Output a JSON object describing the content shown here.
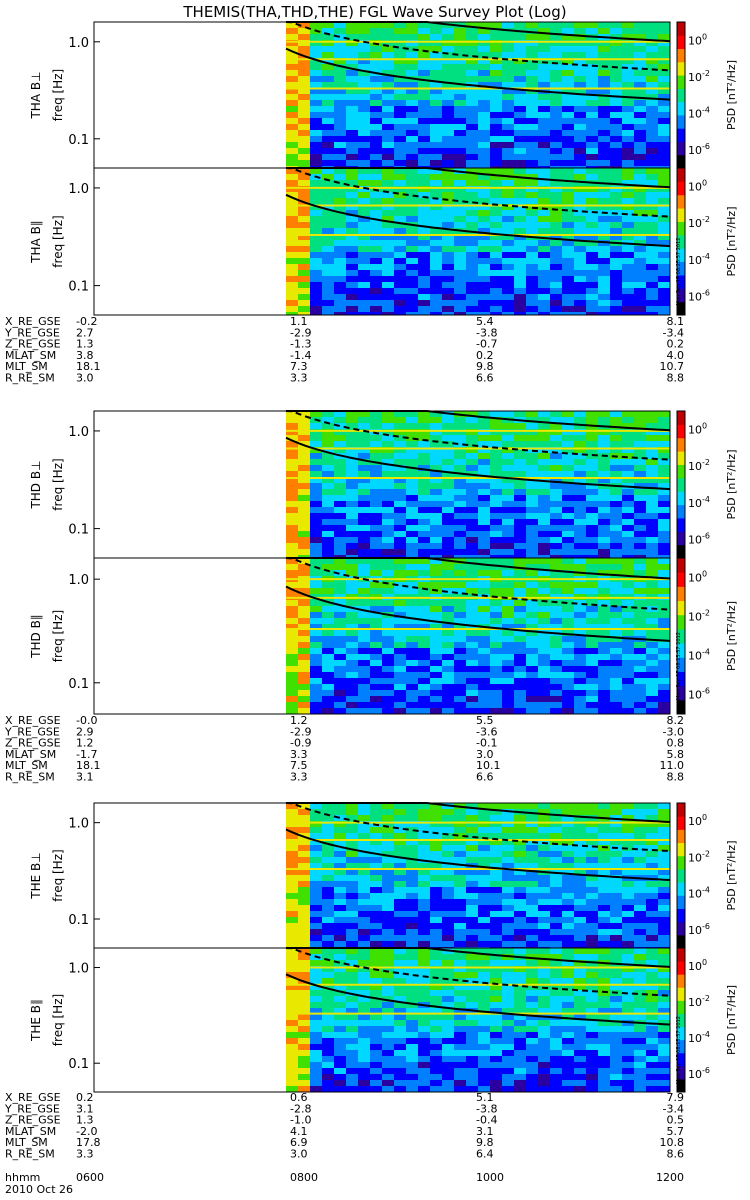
{
  "title": "THEMIS(THA,THD,THE) FGL Wave Survey Plot (Log)",
  "panel_axis_label": "freq [Hz]",
  "freq_ticks": [
    "1.0",
    "0.1"
  ],
  "colorbar": {
    "label": "PSD [nT²/Hz]",
    "tick_mantissa": "10",
    "tick_exponents": [
      "0",
      "-2",
      "-4",
      "-6"
    ],
    "colors": [
      "#000000",
      "#2a00a0",
      "#0000ff",
      "#0080ff",
      "#00d8ff",
      "#00e080",
      "#40e000",
      "#e8e800",
      "#ff8000",
      "#ff0000",
      "#c00000"
    ]
  },
  "timestamp": "Mon Sep 17 08:25:57 2012",
  "ephemeris_row_labels": [
    "X_RE_GSE",
    "Y_RE_GSE",
    "Z_RE_GSE",
    "MLAT_SM",
    "MLT_SM",
    "R_RE_SM"
  ],
  "time_row_label": "hhmm",
  "time_ticks": [
    "0600",
    "0800",
    "1000",
    "1200"
  ],
  "date": "2010 Oct 26",
  "chart_data": {
    "type": "heatmap",
    "title": "THEMIS(THA,THD,THE) FGL Wave Survey Plot (Log)",
    "xlabel": "hhmm",
    "x_ticks": [
      "0600",
      "0800",
      "1000",
      "1200"
    ],
    "ylabel": "freq [Hz]",
    "y_scale": "log",
    "ylim": [
      0.05,
      1.6
    ],
    "colorbar_scale": "log",
    "colorbar_label": "PSD [nT²/Hz]",
    "colorbar_range": [
      1e-07,
      10.0
    ],
    "data_start": "0800",
    "panels": [
      {
        "probe": "THA",
        "component": "B⊥",
        "label": "THA B⊥"
      },
      {
        "probe": "THA",
        "component": "B∥",
        "label": "THA B∥"
      },
      {
        "probe": "THD",
        "component": "B⊥",
        "label": "THD B⊥"
      },
      {
        "probe": "THD",
        "component": "B∥",
        "label": "THD B∥"
      },
      {
        "probe": "THE",
        "component": "B⊥",
        "label": "THE B⊥"
      },
      {
        "probe": "THE",
        "component": "B∥",
        "label": "THE B∥"
      }
    ],
    "ephemeris": [
      {
        "probe": "THA",
        "rows": [
          [
            "-0.2",
            "1.1",
            "5.4",
            "8.1"
          ],
          [
            "2.7",
            "-2.9",
            "-3.8",
            "-3.4"
          ],
          [
            "1.3",
            "-1.3",
            "-0.7",
            "0.2"
          ],
          [
            "3.8",
            "-1.4",
            "0.2",
            "4.0"
          ],
          [
            "18.1",
            "7.3",
            "9.8",
            "10.7"
          ],
          [
            "3.0",
            "3.3",
            "6.6",
            "8.8"
          ]
        ]
      },
      {
        "probe": "THD",
        "rows": [
          [
            "-0.0",
            "1.2",
            "5.5",
            "8.2"
          ],
          [
            "2.9",
            "-2.9",
            "-3.6",
            "-3.0"
          ],
          [
            "1.2",
            "-0.9",
            "-0.1",
            "0.8"
          ],
          [
            "-1.7",
            "3.3",
            "3.0",
            "5.8"
          ],
          [
            "18.1",
            "7.5",
            "10.1",
            "11.0"
          ],
          [
            "3.1",
            "3.3",
            "6.6",
            "8.8"
          ]
        ]
      },
      {
        "probe": "THE",
        "rows": [
          [
            "0.2",
            "0.6",
            "5.1",
            "7.9"
          ],
          [
            "3.1",
            "-2.8",
            "-3.8",
            "-3.4"
          ],
          [
            "1.3",
            "-1.0",
            "-0.4",
            "0.5"
          ],
          [
            "-2.0",
            "4.1",
            "3.1",
            "5.7"
          ],
          [
            "17.8",
            "6.9",
            "9.8",
            "10.8"
          ],
          [
            "3.3",
            "3.0",
            "6.4",
            "8.6"
          ]
        ]
      }
    ]
  }
}
